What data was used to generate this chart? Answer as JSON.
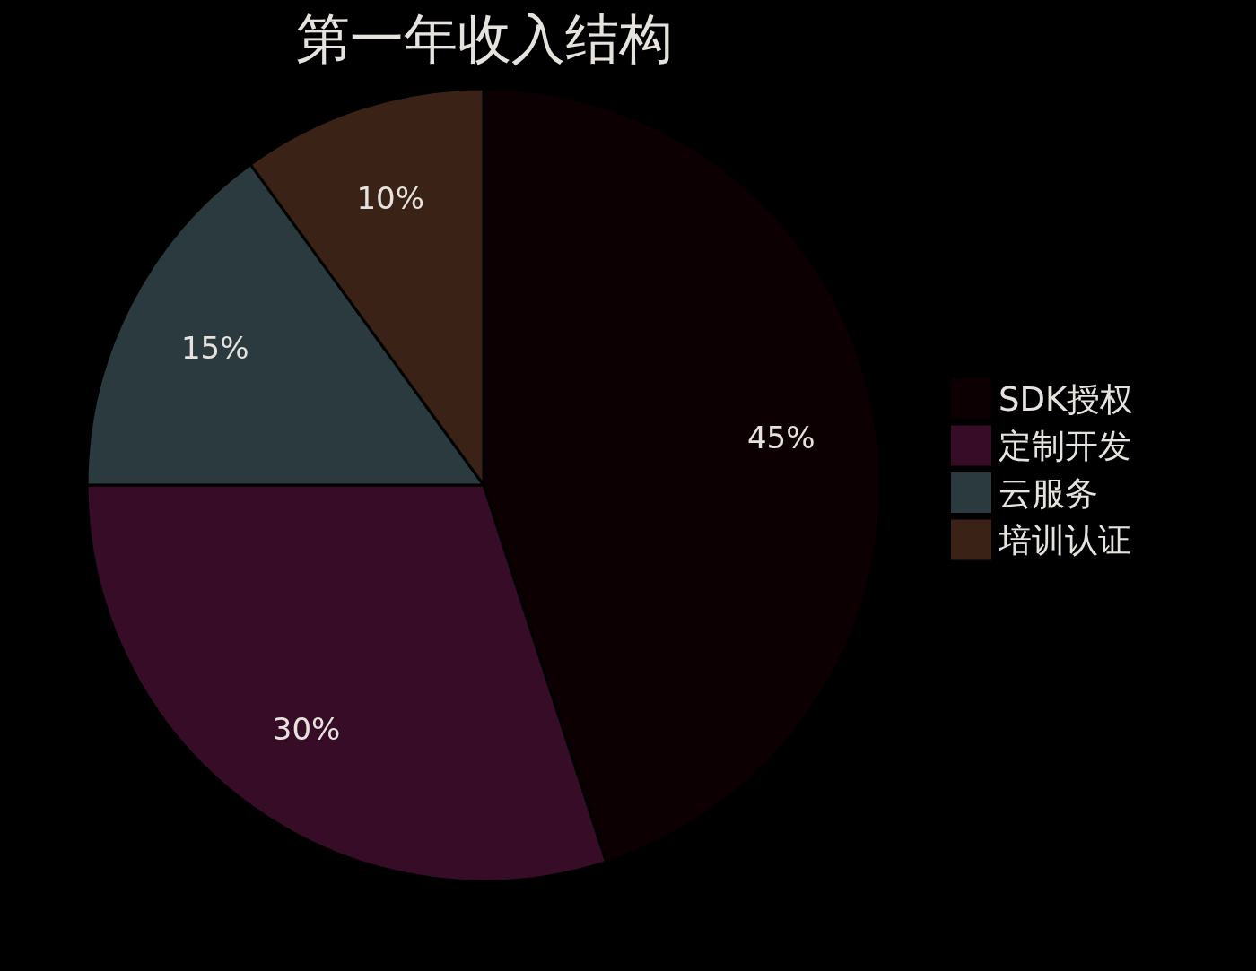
{
  "chart_data": {
    "type": "pie",
    "title": "第一年收入结构",
    "categories": [
      "SDK授权",
      "定制开发",
      "云服务",
      "培训认证"
    ],
    "values": [
      45,
      30,
      15,
      10
    ],
    "value_labels": [
      "45%",
      "30%",
      "15%",
      "10%"
    ],
    "colors": [
      "#0c0002",
      "#370c26",
      "#2b3a3f",
      "#3b2216"
    ],
    "legend": "right"
  }
}
